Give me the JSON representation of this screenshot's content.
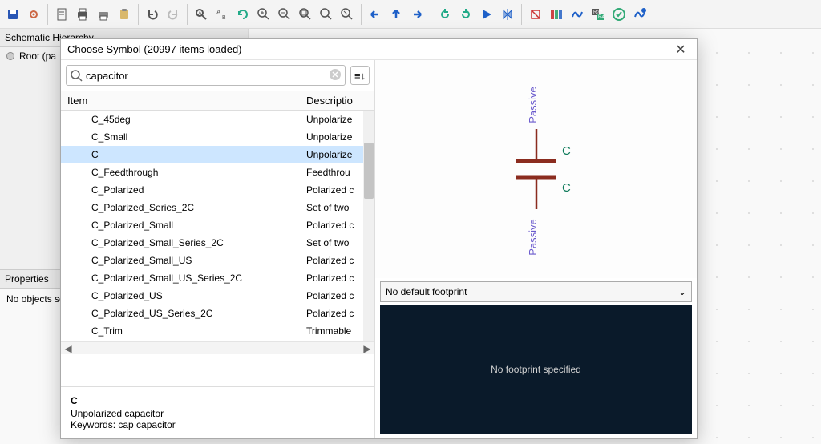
{
  "toolbar": {
    "icons": [
      "save-icon",
      "settings-icon",
      "page-icon",
      "print-icon",
      "print-preview-icon",
      "paste-icon",
      "undo-icon",
      "redo-icon",
      "find-icon",
      "find-replace-icon",
      "refresh-icon",
      "zoom-in-icon",
      "zoom-out-icon",
      "zoom-fit-icon",
      "zoom-tool-icon",
      "zoom-redo-icon",
      "arrow-left-icon",
      "arrow-up-icon",
      "arrow-right-icon",
      "rotate-ccw-icon",
      "rotate-cw-icon",
      "play-icon",
      "mirror-icon",
      "erc-icon",
      "library-icon",
      "sim-icon",
      "annotate-icon",
      "bom-icon",
      "pcb-icon"
    ],
    "separators_after": [
      1,
      5,
      7,
      15,
      18,
      22
    ]
  },
  "hierarchy": {
    "title": "Schematic Hierarchy",
    "root_label": "Root (pa"
  },
  "properties": {
    "title": "Properties",
    "empty_text": "No objects se"
  },
  "dialog": {
    "title": "Choose Symbol (20997 items loaded)",
    "search_value": "capacitor",
    "columns": {
      "item": "Item",
      "description": "Descriptio"
    },
    "selected_index": 2,
    "rows": [
      {
        "name": "C_45deg",
        "desc": "Unpolarize"
      },
      {
        "name": "C_Small",
        "desc": "Unpolarize"
      },
      {
        "name": "C",
        "desc": "Unpolarize"
      },
      {
        "name": "C_Feedthrough",
        "desc": "Feedthrou"
      },
      {
        "name": "C_Polarized",
        "desc": "Polarized c"
      },
      {
        "name": "C_Polarized_Series_2C",
        "desc": "Set of two"
      },
      {
        "name": "C_Polarized_Small",
        "desc": "Polarized c"
      },
      {
        "name": "C_Polarized_Small_Series_2C",
        "desc": "Set of two"
      },
      {
        "name": "C_Polarized_Small_US",
        "desc": "Polarized c"
      },
      {
        "name": "C_Polarized_Small_US_Series_2C",
        "desc": "Polarized c"
      },
      {
        "name": "C_Polarized_US",
        "desc": "Polarized c"
      },
      {
        "name": "C_Polarized_US_Series_2C",
        "desc": "Polarized c"
      },
      {
        "name": "C_Trim",
        "desc": "Trimmable"
      }
    ],
    "details": {
      "name": "C",
      "desc": "Unpolarized capacitor",
      "keywords_label": "Keywords:",
      "keywords": "cap capacitor"
    },
    "preview": {
      "c_label": "C",
      "pin_label": "Passive",
      "plate_color": "#8b2c1f",
      "lead_color": "#8b2c1f",
      "c_color": "#0e7a5a",
      "pin_color": "#6a5acd"
    },
    "footprint": {
      "select_text": "No default footprint",
      "view_text": "No footprint specified",
      "view_bg": "#0a1a2a"
    }
  }
}
